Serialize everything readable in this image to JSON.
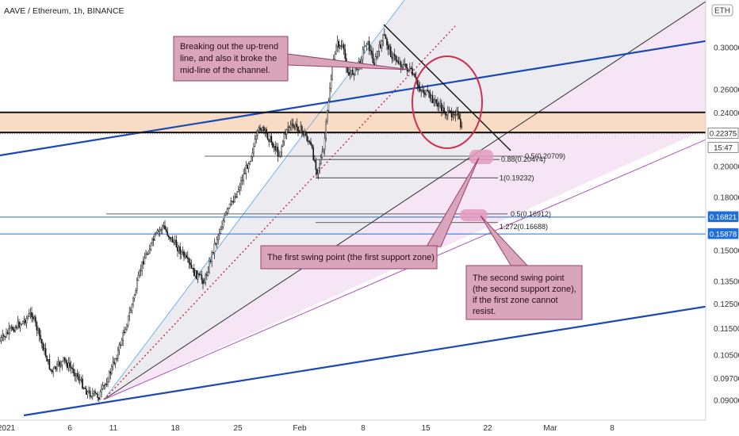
{
  "chart_data": {
    "type": "candlestick",
    "title": "AAVE / Ethereum, 1h, BINANCE",
    "currency_badge": "ETH",
    "x_ticks": [
      "2021",
      "6",
      "11",
      "18",
      "25",
      "Feb",
      "8",
      "15",
      "22",
      "Mar",
      "8"
    ],
    "y_ticks": [
      "0.30000",
      "0.26000",
      "0.24000",
      "0.20000",
      "0.18000",
      "0.15000",
      "0.13500",
      "0.12500",
      "0.11500",
      "0.10500",
      "0.09700",
      "0.09000"
    ],
    "ylim": [
      0.085,
      0.345
    ],
    "y_scale": "log",
    "price_labels": [
      {
        "text": "0.22375",
        "value": 0.22375,
        "color": "#ffffff",
        "text_color": "#222222"
      },
      {
        "text": "15:47",
        "value": 0.2205,
        "color": "#ffffff",
        "text_color": "#222222"
      },
      {
        "text": "0.16821",
        "value": 0.16821,
        "color": "#1e6fdc",
        "text_color": "#ffffff"
      },
      {
        "text": "0.15878",
        "value": 0.15878,
        "color": "#1e6fdc",
        "text_color": "#ffffff"
      }
    ],
    "fib_levels": [
      {
        "text": "0.5(0.20709)",
        "value": 0.20709
      },
      {
        "text": "0.88(0.20474)",
        "value": 0.20474
      },
      {
        "text": "1(0.19232)",
        "value": 0.19232
      },
      {
        "text": "0.5(0.16912)",
        "value": 0.16912
      },
      {
        "text": "1.272(0.16688)",
        "value": 0.16688
      }
    ],
    "horizontal_levels": [
      0.16821,
      0.15878
    ],
    "support_zone": [
      0.2245,
      0.2405
    ],
    "colors": {
      "channel_blue": "#1a49b3",
      "trend_light_blue": "#6fb3e8",
      "mid_dotted": "#d0263c",
      "purple": "#b04fc0",
      "black": "#111111",
      "zone": "#f8dcc6",
      "annotation_fill": "#d8a5bb",
      "annotation_border": "#9a3f6a",
      "level_blue": "#1e6fdc"
    }
  },
  "annotations": {
    "breakout": [
      "Breaking out the up-trend",
      "line, and also it broke the",
      "mid-line of the channel."
    ],
    "first_swing": [
      "The first swing point (the first support zone)"
    ],
    "second_swing": [
      "The second swing point",
      "(the second support zone),",
      "if the first zone cannot",
      "resist."
    ]
  }
}
